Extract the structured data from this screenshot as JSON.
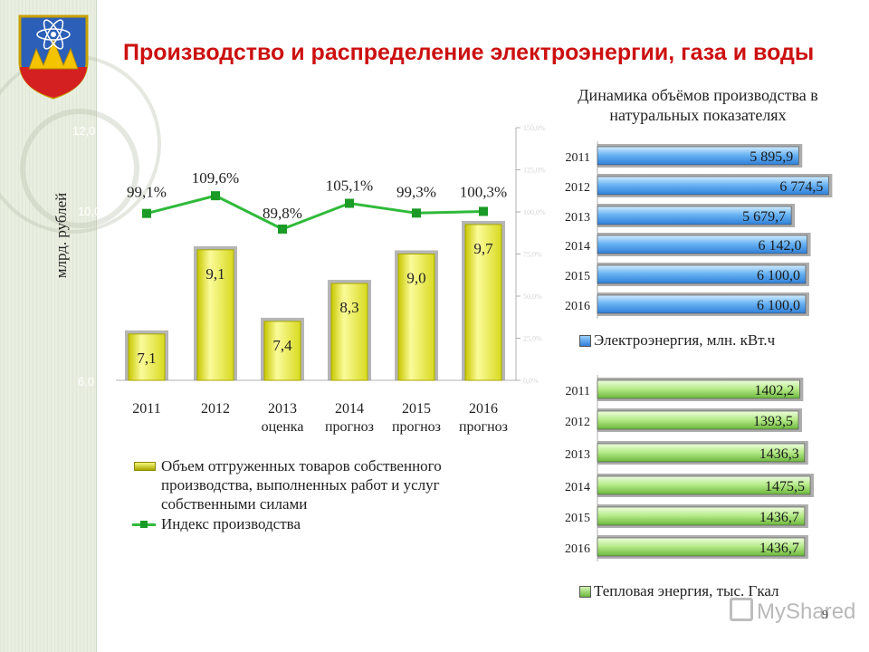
{
  "page": {
    "title": "Производство и распределение электроэнергии, газа и воды",
    "page_number": "9",
    "watermark": "MyShared"
  },
  "colors": {
    "title": "#cc1010",
    "bar_fill": "#eef060",
    "line": "#2fba3a",
    "elec_bar": "#5aa8f0",
    "heat_bar": "#a8e07a"
  },
  "chart_data": [
    {
      "type": "bar",
      "ylabel": "млрд. рублей",
      "y_ticks": [
        "6,0",
        "10,0",
        "12,0"
      ],
      "categories": [
        {
          "year": "2011",
          "sub": ""
        },
        {
          "year": "2012",
          "sub": ""
        },
        {
          "year": "2013",
          "sub": "оценка"
        },
        {
          "year": "2014",
          "sub": "прогноз"
        },
        {
          "year": "2015",
          "sub": "прогноз"
        },
        {
          "year": "2016",
          "sub": "прогноз"
        }
      ],
      "series": [
        {
          "name": "Объем отгруженных товаров собственного производства, выполненных работ и услуг собственными силами",
          "type": "bar",
          "values": [
            7.1,
            9.1,
            7.4,
            8.3,
            9.0,
            9.7
          ],
          "labels": [
            "7,1",
            "9,1",
            "7,4",
            "8,3",
            "9,0",
            "9,7"
          ]
        },
        {
          "name": "Индекс производства",
          "type": "line",
          "values": [
            99.1,
            109.6,
            89.8,
            105.1,
            99.3,
            100.3
          ],
          "labels": [
            "99,1%",
            "109,6%",
            "89,8%",
            "105,1%",
            "99,3%",
            "100,3%"
          ]
        }
      ],
      "y2_ticks": [
        "0,0%",
        "25,0%",
        "50,0%",
        "75,0%",
        "100,0%",
        "125,0%",
        "150,0%"
      ],
      "y2lim": [
        0,
        150
      ]
    },
    {
      "type": "bar",
      "orientation": "horizontal",
      "title": "Динамика объёмов производства в натуральных показателях",
      "categories": [
        "2011",
        "2012",
        "2013",
        "2014",
        "2015",
        "2016"
      ],
      "series": [
        {
          "name": "Электроэнергия, млн. кВт.ч",
          "values": [
            5895.9,
            6774.5,
            5679.7,
            6142.0,
            6100.0,
            6100.0
          ],
          "labels": [
            "5 895,9",
            "6 774,5",
            "5 679,7",
            "6 142,0",
            "6 100,0",
            "6 100,0"
          ]
        }
      ]
    },
    {
      "type": "bar",
      "orientation": "horizontal",
      "categories": [
        "2011",
        "2012",
        "2013",
        "2014",
        "2015",
        "2016"
      ],
      "series": [
        {
          "name": "Тепловая энергия, тыс. Гкал",
          "values": [
            1402.2,
            1393.5,
            1436.3,
            1475.5,
            1436.7,
            1436.7
          ],
          "labels": [
            "1402,2",
            "1393,5",
            "1436,3",
            "1475,5",
            "1436,7",
            "1436,7"
          ]
        }
      ]
    }
  ]
}
